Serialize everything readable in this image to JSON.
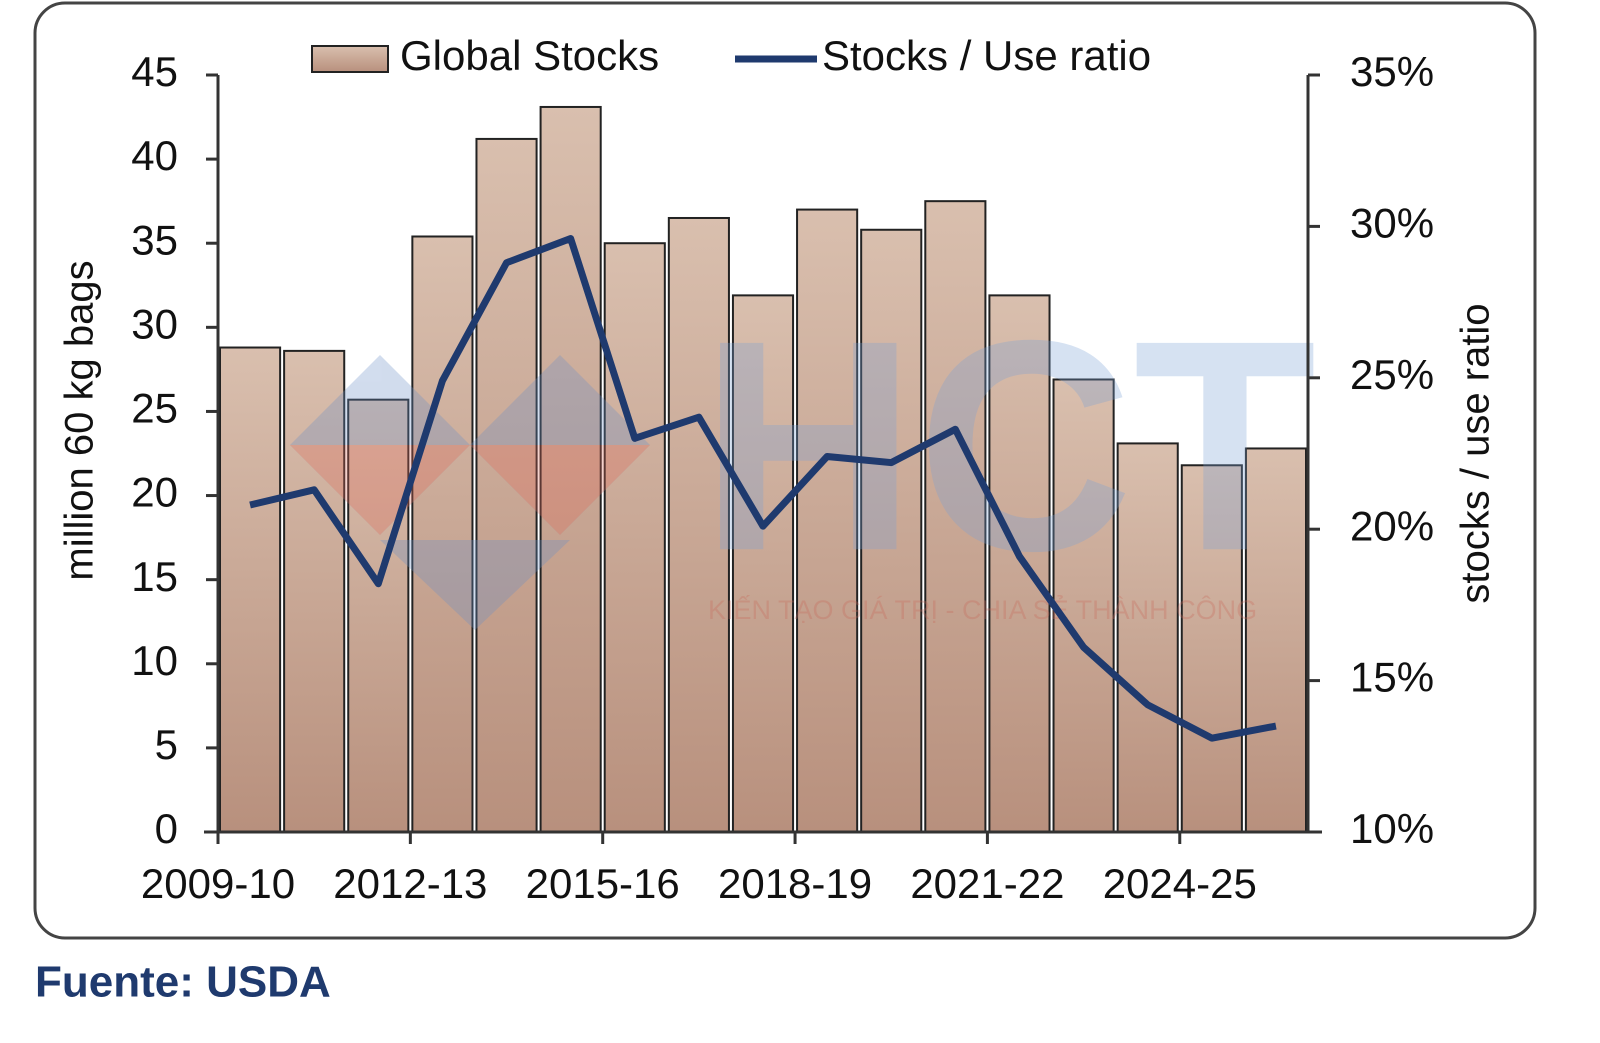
{
  "chart_data": {
    "type": "bar-line",
    "categories": [
      "2009-10",
      null,
      null,
      "2012-13",
      null,
      null,
      "2015-16",
      null,
      null,
      "2018-19",
      null,
      null,
      "2021-22",
      null,
      null,
      "2024-25",
      null
    ],
    "series": [
      {
        "name": "Global Stocks",
        "type": "bar",
        "color": "#d8b8a5",
        "values": [
          28.8,
          28.6,
          25.7,
          35.4,
          41.2,
          43.1,
          35.0,
          36.5,
          31.9,
          37.0,
          35.8,
          37.5,
          31.9,
          26.9,
          23.1,
          21.8,
          22.8
        ]
      },
      {
        "name": "Stocks / Use ratio",
        "type": "line",
        "axis": "y2",
        "color": "#1f3a6e",
        "values": [
          20.8,
          21.3,
          18.2,
          24.9,
          28.8,
          29.6,
          23.0,
          23.7,
          20.1,
          22.4,
          22.2,
          23.3,
          19.1,
          16.1,
          14.2,
          13.1,
          13.5
        ]
      }
    ],
    "ylabel": "million 60 kg bags",
    "y2label": "stocks / use ratio",
    "ylim": [
      0,
      45
    ],
    "yticks": [
      0,
      5,
      10,
      15,
      20,
      25,
      30,
      35,
      40,
      45
    ],
    "y2lim": [
      10,
      35
    ],
    "y2ticks": [
      {
        "value": 10,
        "label": "10%"
      },
      {
        "value": 15,
        "label": "15%"
      },
      {
        "value": 20,
        "label": "20%"
      },
      {
        "value": 25,
        "label": "25%"
      },
      {
        "value": 30,
        "label": "30%"
      },
      {
        "value": 35,
        "label": "35%"
      }
    ],
    "legend": "top",
    "watermark": {
      "logo": "HCT",
      "slogan": "KIẾN TẠO GIÁ TRỊ - CHIA SẺ THÀNH CÔNG"
    }
  },
  "source": "Fuente: USDA"
}
